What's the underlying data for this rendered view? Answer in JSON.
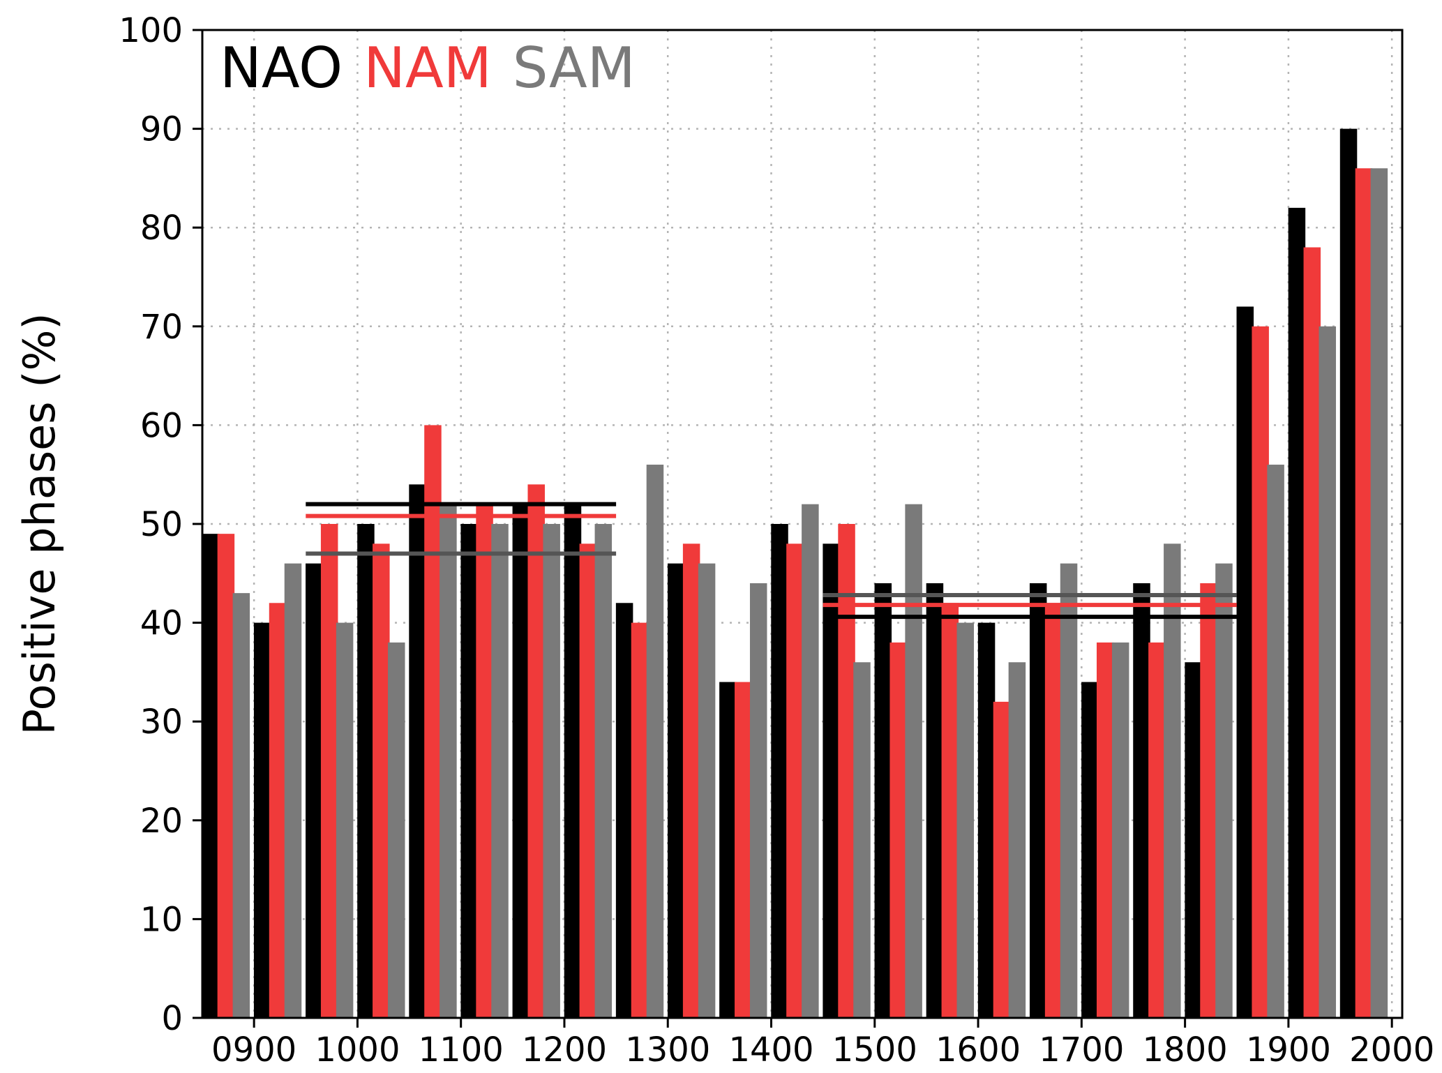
{
  "chart_data": {
    "type": "bar",
    "title": "",
    "xlabel": "",
    "ylabel": "Positive phases (%)",
    "ylim": [
      0,
      100
    ],
    "xlim": [
      850,
      2010
    ],
    "grid": true,
    "legend_placement": "top-left",
    "yticks": [
      0,
      10,
      20,
      30,
      40,
      50,
      60,
      70,
      80,
      90,
      100
    ],
    "xticks": [
      "0900",
      "1000",
      "1100",
      "1200",
      "1300",
      "1400",
      "1500",
      "1600",
      "1700",
      "1800",
      "1900",
      "2000"
    ],
    "categories": [
      850,
      900,
      950,
      1000,
      1050,
      1100,
      1150,
      1200,
      1250,
      1300,
      1350,
      1400,
      1450,
      1500,
      1550,
      1600,
      1650,
      1700,
      1750,
      1800,
      1850,
      1900,
      1950
    ],
    "series": [
      {
        "name": "NAO",
        "color": "#000000",
        "values": [
          49,
          40,
          46,
          50,
          54,
          50,
          52,
          52,
          42,
          46,
          34,
          50,
          48,
          44,
          44,
          40,
          44,
          34,
          44,
          36,
          72,
          82,
          90
        ]
      },
      {
        "name": "NAM",
        "color": "#f03a3a",
        "values": [
          49,
          42,
          50,
          48,
          60,
          52,
          54,
          48,
          40,
          48,
          34,
          48,
          50,
          38,
          42,
          32,
          42,
          38,
          38,
          44,
          70,
          78,
          86
        ]
      },
      {
        "name": "SAM",
        "color": "#7a7a7a",
        "values": [
          43,
          46,
          40,
          38,
          52,
          50,
          50,
          50,
          56,
          46,
          44,
          52,
          36,
          52,
          40,
          36,
          46,
          38,
          48,
          46,
          56,
          70,
          86
        ]
      }
    ],
    "mean_lines": [
      {
        "series": "NAO",
        "x_start": 950,
        "x_end": 1250,
        "value": 52
      },
      {
        "series": "NAM",
        "x_start": 950,
        "x_end": 1250,
        "value": 50.8
      },
      {
        "series": "SAM",
        "x_start": 950,
        "x_end": 1250,
        "value": 47
      },
      {
        "series": "SAM",
        "x_start": 1450,
        "x_end": 1850,
        "value": 42.8
      },
      {
        "series": "NAM",
        "x_start": 1450,
        "x_end": 1850,
        "value": 41.8
      },
      {
        "series": "NAO",
        "x_start": 1450,
        "x_end": 1850,
        "value": 40.6
      }
    ]
  }
}
